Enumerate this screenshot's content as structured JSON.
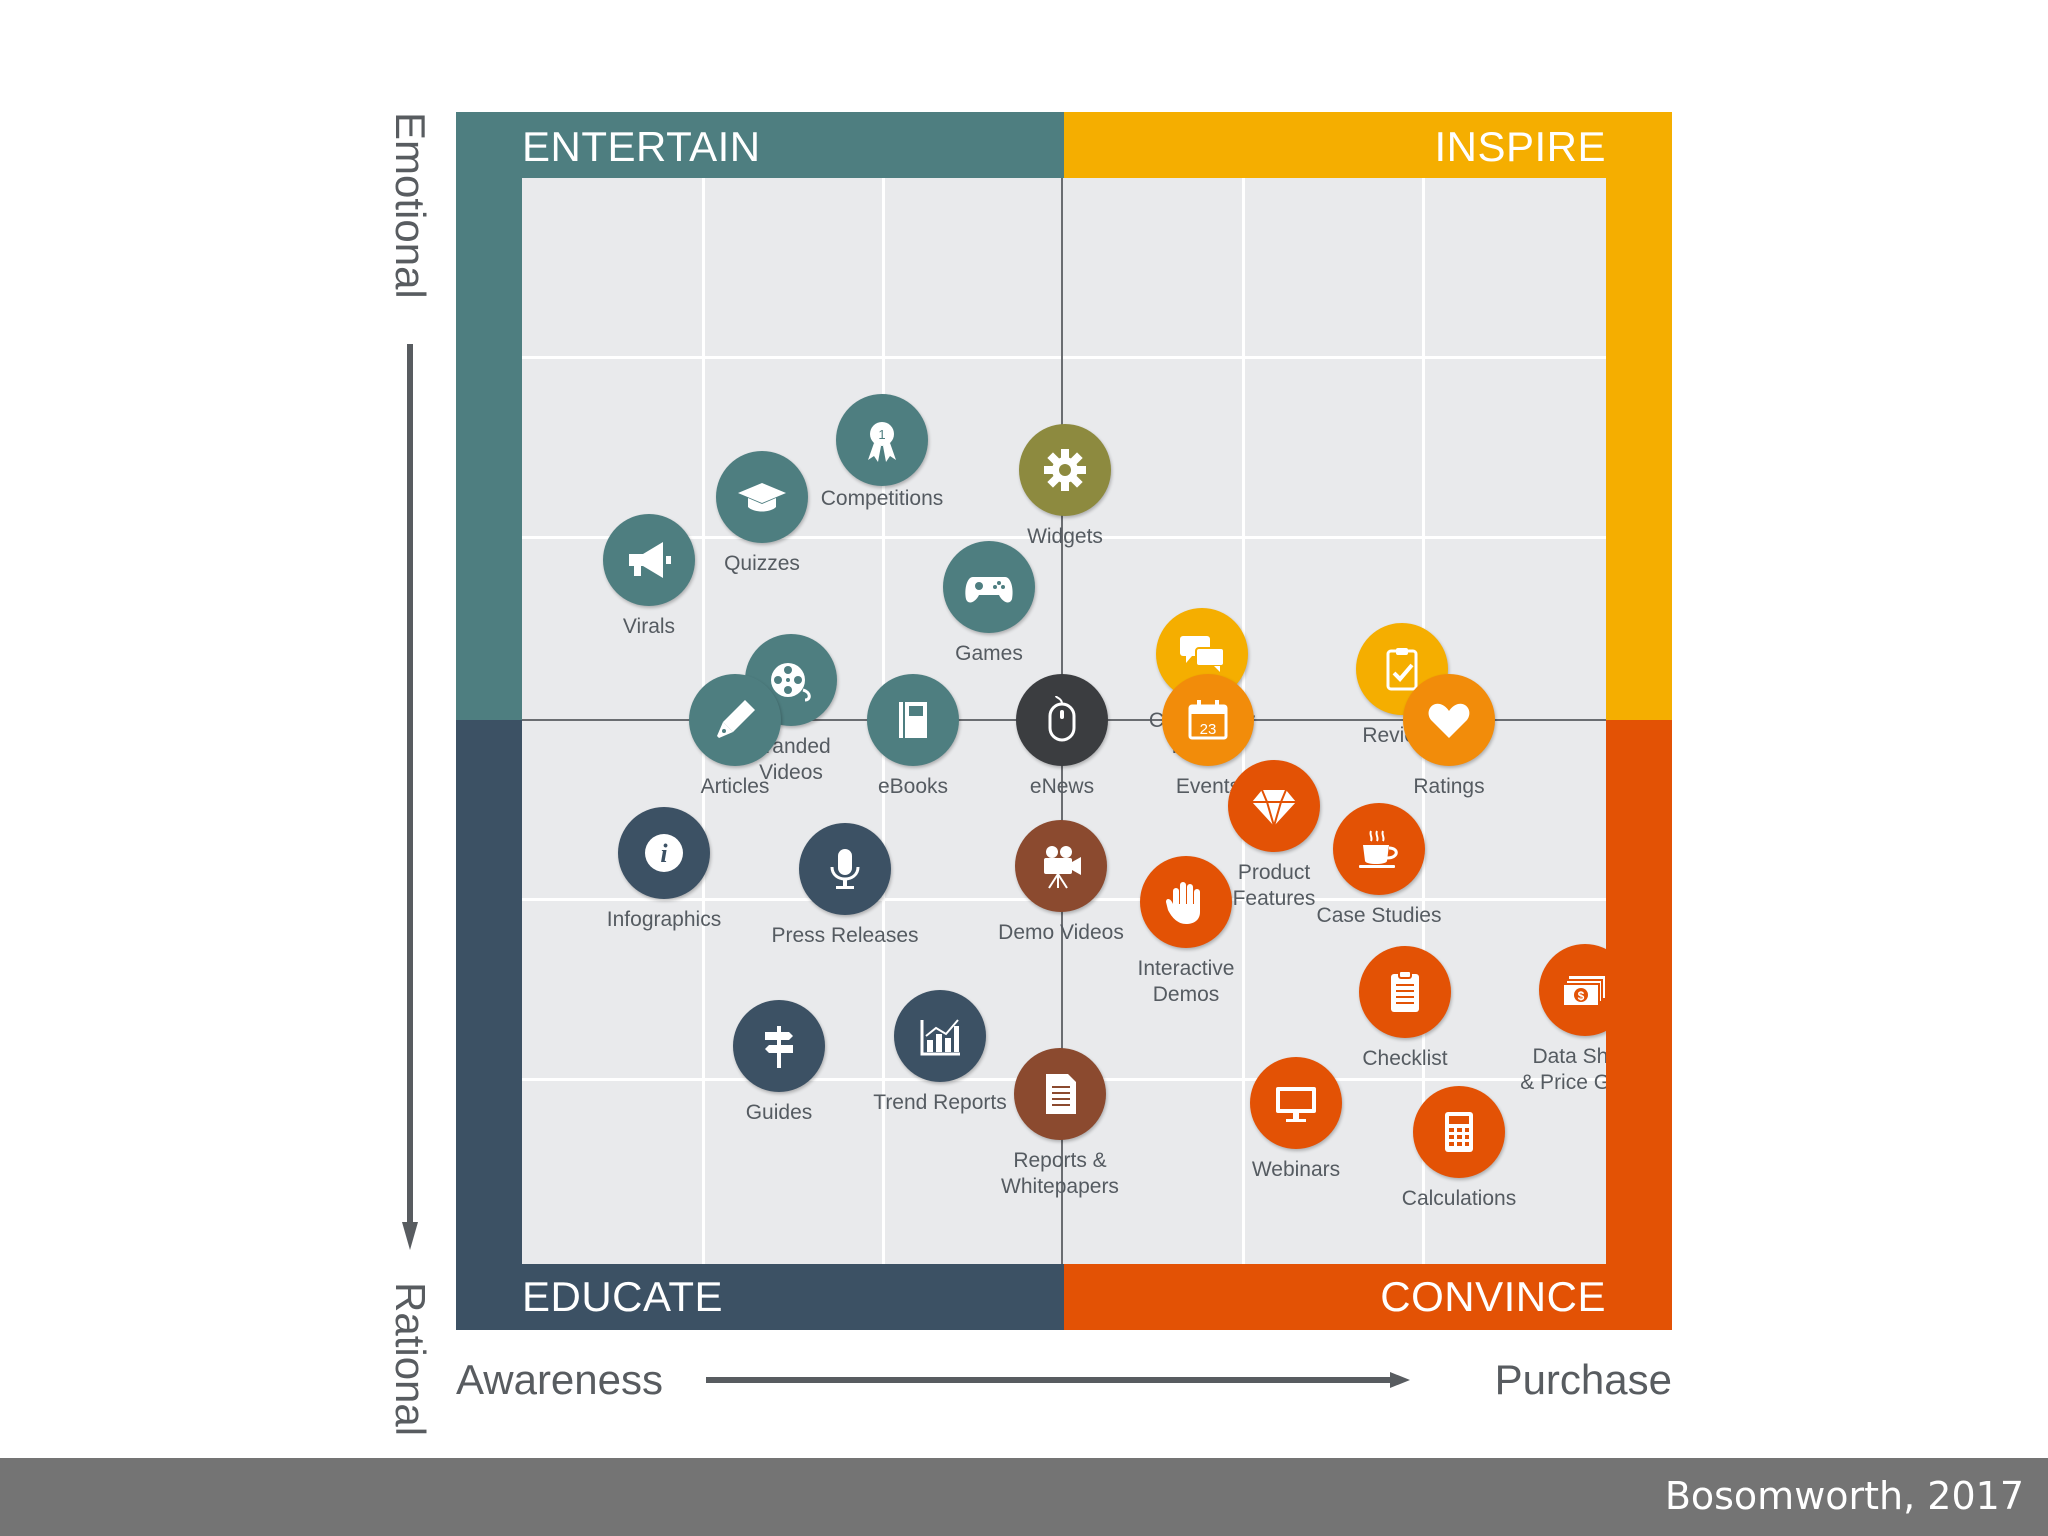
{
  "axes": {
    "vertical_top": "Emotional",
    "vertical_bottom": "Rational",
    "horizontal_left": "Awareness",
    "horizontal_right": "Purchase"
  },
  "quadrants": {
    "top_left": "ENTERTAIN",
    "top_right": "INSPIRE",
    "bottom_left": "EDUCATE",
    "bottom_right": "CONVINCE"
  },
  "colors": {
    "entertain": "#4e7e80",
    "inspire": "#f5ae00",
    "educate": "#3c5164",
    "convince": "#e35205",
    "widgets": "#8d8a3f",
    "enews": "#3b3d40",
    "brown": "#8b4a2f",
    "orange_light": "#f28c0a"
  },
  "items": [
    {
      "label": "Competitions",
      "icon": "award-ribbon-icon"
    },
    {
      "label": "Quizzes",
      "icon": "graduation-cap-icon"
    },
    {
      "label": "Virals",
      "icon": "megaphone-icon"
    },
    {
      "label": "Widgets",
      "icon": "gear-icon"
    },
    {
      "label": "Games",
      "icon": "gamepad-icon"
    },
    {
      "label": "Branded\nVideos",
      "icon": "film-reel-icon"
    },
    {
      "label": "Community\nForum",
      "icon": "chat-bubbles-icon"
    },
    {
      "label": "Reviews",
      "icon": "clipboard-check-icon"
    },
    {
      "label": "Articles",
      "icon": "pen-nib-icon"
    },
    {
      "label": "eBooks",
      "icon": "book-icon"
    },
    {
      "label": "eNews",
      "icon": "mouse-icon"
    },
    {
      "label": "Events",
      "icon": "calendar-icon",
      "day": "23"
    },
    {
      "label": "Ratings",
      "icon": "heart-icon"
    },
    {
      "label": "Infographics",
      "icon": "info-icon",
      "glyph": "i"
    },
    {
      "label": "Press Releases",
      "icon": "microphone-icon"
    },
    {
      "label": "Demo Videos",
      "icon": "movie-camera-icon"
    },
    {
      "label": "Product\nFeatures",
      "icon": "diamond-icon"
    },
    {
      "label": "Case Studies",
      "icon": "coffee-cup-icon"
    },
    {
      "label": "Interactive\nDemos",
      "icon": "hand-icon"
    },
    {
      "label": "Checklist",
      "icon": "checklist-icon"
    },
    {
      "label": "Data Sheet\n& Price Guide",
      "icon": "money-icon",
      "glyph": "$"
    },
    {
      "label": "Guides",
      "icon": "signpost-icon"
    },
    {
      "label": "Trend Reports",
      "icon": "bar-chart-icon"
    },
    {
      "label": "Reports &\nWhitepapers",
      "icon": "document-icon"
    },
    {
      "label": "Webinars",
      "icon": "monitor-icon"
    },
    {
      "label": "Calculations",
      "icon": "calculator-icon"
    }
  ],
  "footer": {
    "citation": "Bosomworth, 2017"
  }
}
